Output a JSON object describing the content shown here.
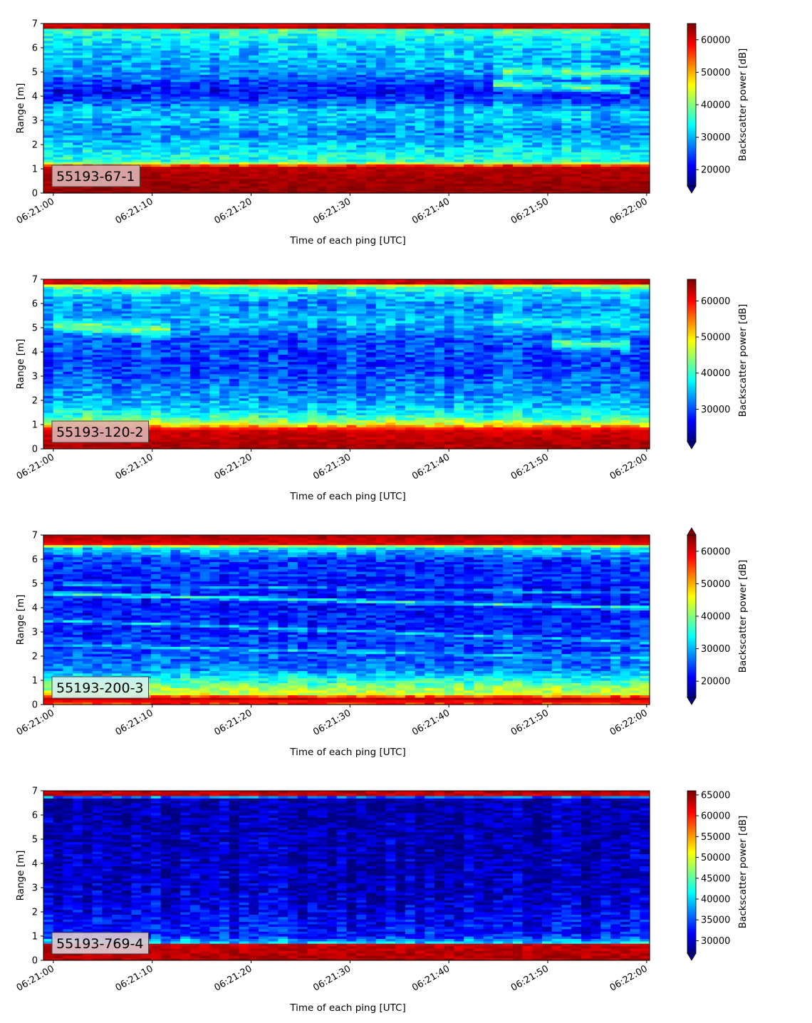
{
  "chart_data": [
    {
      "type": "heatmap",
      "panel_label": "55193-67-1",
      "xlabel": "Time of each ping [UTC]",
      "ylabel": "Range [m]",
      "colorbar_label": "Backscatter power [dB]",
      "x_tick_labels": [
        "06:21:00",
        "06:21:10",
        "06:21:20",
        "06:21:30",
        "06:21:40",
        "06:21:50",
        "06:22:00"
      ],
      "x_range_seconds": [
        -1,
        60.3
      ],
      "ylim": [
        0,
        7
      ],
      "y_ticks": [
        0,
        1,
        2,
        3,
        4,
        5,
        6,
        7
      ],
      "colorbar_range": [
        15000,
        65000
      ],
      "colorbar_ticks": [
        20000,
        30000,
        40000,
        50000,
        60000
      ],
      "colorbar_extend": "min",
      "colormap": "jet",
      "label_box_color": "#dcb0b0",
      "range_profile": [
        {
          "range_m": 0.2,
          "power": 64000
        },
        {
          "range_m": 1.1,
          "power": 62000
        },
        {
          "range_m": 1.3,
          "power": 36000
        },
        {
          "range_m": 1.8,
          "power": 33000
        },
        {
          "range_m": 2.5,
          "power": 28000
        },
        {
          "range_m": 3.3,
          "power": 32000
        },
        {
          "range_m": 4.2,
          "power": 21000
        },
        {
          "range_m": 5.0,
          "power": 29000
        },
        {
          "range_m": 5.8,
          "power": 31000
        },
        {
          "range_m": 6.5,
          "power": 34000
        },
        {
          "range_m": 6.8,
          "power": 38000
        },
        {
          "range_m": 6.85,
          "power": 62000
        },
        {
          "range_m": 7.0,
          "power": 60000
        }
      ],
      "features": [
        {
          "t_start": 45,
          "t_end": 60,
          "range_start": 5.0,
          "range_end": 5.0,
          "width_m": 0.3,
          "power": 40000
        },
        {
          "t_start": 44,
          "t_end": 58,
          "range_start": 4.5,
          "range_end": 4.3,
          "width_m": 0.3,
          "power": 38000
        }
      ]
    },
    {
      "type": "heatmap",
      "panel_label": "55193-120-2",
      "xlabel": "Time of each ping [UTC]",
      "ylabel": "Range [m]",
      "colorbar_label": "Backscatter power [dB]",
      "x_tick_labels": [
        "06:21:00",
        "06:21:10",
        "06:21:20",
        "06:21:30",
        "06:21:40",
        "06:21:50",
        "06:22:00"
      ],
      "x_range_seconds": [
        -1,
        60.3
      ],
      "ylim": [
        0,
        7
      ],
      "y_ticks": [
        0,
        1,
        2,
        3,
        4,
        5,
        6,
        7
      ],
      "colorbar_range": [
        21000,
        66000
      ],
      "colorbar_ticks": [
        30000,
        40000,
        50000,
        60000
      ],
      "colorbar_extend": "min",
      "colormap": "jet",
      "label_box_color": "#dcb0b0",
      "range_profile": [
        {
          "range_m": 0.2,
          "power": 64000
        },
        {
          "range_m": 0.8,
          "power": 62000
        },
        {
          "range_m": 1.0,
          "power": 50000
        },
        {
          "range_m": 1.3,
          "power": 40000
        },
        {
          "range_m": 1.8,
          "power": 35000
        },
        {
          "range_m": 2.5,
          "power": 32000
        },
        {
          "range_m": 3.5,
          "power": 29000
        },
        {
          "range_m": 4.5,
          "power": 30000
        },
        {
          "range_m": 5.2,
          "power": 35000
        },
        {
          "range_m": 6.0,
          "power": 33000
        },
        {
          "range_m": 6.6,
          "power": 38000
        },
        {
          "range_m": 6.8,
          "power": 50000
        },
        {
          "range_m": 6.85,
          "power": 63000
        },
        {
          "range_m": 7.0,
          "power": 62000
        }
      ],
      "features": [
        {
          "t_start": 0,
          "t_end": 12,
          "range_start": 5.1,
          "range_end": 4.9,
          "width_m": 0.35,
          "power": 44000
        },
        {
          "t_start": 50,
          "t_end": 58,
          "range_start": 4.4,
          "range_end": 4.3,
          "width_m": 0.3,
          "power": 43000
        },
        {
          "t_start": 44,
          "t_end": 60,
          "range_start": 5.3,
          "range_end": 5.1,
          "width_m": 0.3,
          "power": 38000
        }
      ]
    },
    {
      "type": "heatmap",
      "panel_label": "55193-200-3",
      "xlabel": "Time of each ping [UTC]",
      "ylabel": "Range [m]",
      "colorbar_label": "Backscatter power [dB]",
      "x_tick_labels": [
        "06:21:00",
        "06:21:10",
        "06:21:20",
        "06:21:30",
        "06:21:40",
        "06:21:50",
        "06:22:00"
      ],
      "x_range_seconds": [
        -1,
        60.3
      ],
      "ylim": [
        0,
        7
      ],
      "y_ticks": [
        0,
        1,
        2,
        3,
        4,
        5,
        6,
        7
      ],
      "colorbar_range": [
        15000,
        65000
      ],
      "colorbar_ticks": [
        20000,
        30000,
        40000,
        50000,
        60000
      ],
      "colorbar_extend": "both",
      "colormap": "jet",
      "label_box_color": "#d4f0ec",
      "range_profile": [
        {
          "range_m": 0.0,
          "power": 55000
        },
        {
          "range_m": 0.25,
          "power": 62000
        },
        {
          "range_m": 0.45,
          "power": 45000
        },
        {
          "range_m": 1.0,
          "power": 36000
        },
        {
          "range_m": 1.5,
          "power": 27000
        },
        {
          "range_m": 3.0,
          "power": 23000
        },
        {
          "range_m": 4.5,
          "power": 22000
        },
        {
          "range_m": 6.0,
          "power": 24000
        },
        {
          "range_m": 6.5,
          "power": 33000
        },
        {
          "range_m": 6.65,
          "power": 60000
        },
        {
          "range_m": 7.0,
          "power": 63000
        }
      ],
      "features": [
        {
          "t_start": -1,
          "t_end": 60,
          "range_start": 4.6,
          "range_end": 4.0,
          "width_m": 0.12,
          "power": 36000
        },
        {
          "t_start": -1,
          "t_end": 60,
          "range_start": 3.5,
          "range_end": 2.6,
          "width_m": 0.1,
          "power": 33000
        },
        {
          "t_start": -1,
          "t_end": 60,
          "range_start": 2.5,
          "range_end": 1.9,
          "width_m": 0.1,
          "power": 32000
        },
        {
          "t_start": -1,
          "t_end": 60,
          "range_start": 5.0,
          "range_end": 4.6,
          "width_m": 0.1,
          "power": 30000
        }
      ]
    },
    {
      "type": "heatmap",
      "panel_label": "55193-769-4",
      "xlabel": "Time of each ping [UTC]",
      "ylabel": "Range [m]",
      "colorbar_label": "Backscatter power [dB]",
      "x_tick_labels": [
        "06:21:00",
        "06:21:10",
        "06:21:20",
        "06:21:30",
        "06:21:40",
        "06:21:50",
        "06:22:00"
      ],
      "x_range_seconds": [
        -1,
        60.3
      ],
      "ylim": [
        0,
        7
      ],
      "y_ticks": [
        0,
        1,
        2,
        3,
        4,
        5,
        6,
        7
      ],
      "colorbar_range": [
        27000,
        66000
      ],
      "colorbar_ticks": [
        30000,
        35000,
        40000,
        45000,
        50000,
        55000,
        60000,
        65000
      ],
      "colorbar_extend": "min",
      "colormap": "jet",
      "label_box_color": "#dcc8d0",
      "range_profile": [
        {
          "range_m": 0.2,
          "power": 64000
        },
        {
          "range_m": 0.65,
          "power": 63000
        },
        {
          "range_m": 0.75,
          "power": 40000
        },
        {
          "range_m": 1.0,
          "power": 33000
        },
        {
          "range_m": 2.0,
          "power": 31000
        },
        {
          "range_m": 3.0,
          "power": 29500
        },
        {
          "range_m": 6.7,
          "power": 28500
        },
        {
          "range_m": 6.8,
          "power": 45000
        },
        {
          "range_m": 6.85,
          "power": 63000
        },
        {
          "range_m": 7.0,
          "power": 64000
        }
      ],
      "features": []
    }
  ]
}
